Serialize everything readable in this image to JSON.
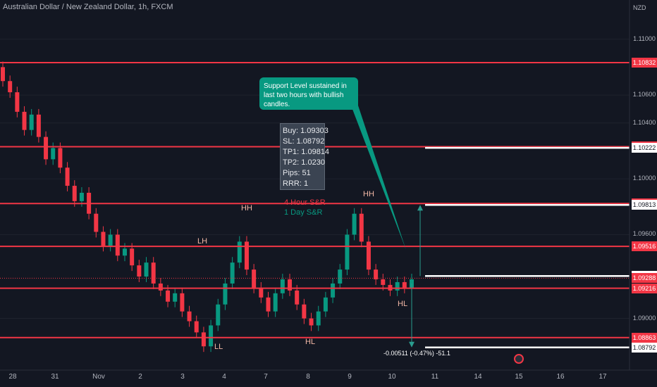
{
  "header": {
    "title": "Australian Dollar / New Zealand Dollar, 1h, FXCM",
    "currency": "NZD"
  },
  "info_box": [
    "Buy: 1.09303",
    "SL: 1.08792",
    "TP1: 1.09814",
    "TP2: 1.0230",
    "Pips: 51",
    "RRR: 1"
  ],
  "callout": "Support Level sustained in last two hours with bullish candles.",
  "legend": {
    "four_hour": "4 Hour S&R",
    "one_day": "1 Day S&R",
    "four_hour_color": "#f23645",
    "one_day_color": "#089981"
  },
  "measure": "-0.00511 (-0.47%) -51.1",
  "chart_data": {
    "type": "candlestick",
    "x_ticks": [
      "28",
      "31",
      "Nov",
      "2",
      "3",
      "4",
      "7",
      "8",
      "9",
      "10",
      "11",
      "14",
      "15",
      "16",
      "17"
    ],
    "y_ticks": [
      "1.11000",
      "1.10600",
      "1.10400",
      "1.10000",
      "1.09600",
      "1.09000"
    ],
    "ylim": [
      1.0866,
      1.1118
    ],
    "price_labels": [
      {
        "value": "1.10832",
        "color": "#f23645"
      },
      {
        "value": "1.10230",
        "color": "#f23645"
      },
      {
        "value": "1.10222",
        "color": "#ffffff"
      },
      {
        "value": "1.09823",
        "color": "#f23645"
      },
      {
        "value": "1.09813",
        "color": "#ffffff"
      },
      {
        "value": "1.09516",
        "color": "#f23645"
      },
      {
        "value": "1.09304",
        "color": "#ffffff"
      },
      {
        "value": "1.09288",
        "color": "#f23645"
      },
      {
        "value": "1.09216",
        "color": "#f23645"
      },
      {
        "value": "1.08863",
        "color": "#f23645"
      },
      {
        "value": "1.08792",
        "color": "#ffffff"
      }
    ],
    "support_resistance_4h": [
      1.10832,
      1.1023,
      1.09823,
      1.09516,
      1.09216,
      1.08863
    ],
    "support_resistance_1d": [
      1.10222,
      1.09813,
      1.09304,
      1.08792
    ],
    "last_price": 1.09288,
    "swing_labels": [
      {
        "text": "HH",
        "x": "Nov 3",
        "y": 1.0972
      },
      {
        "text": "LH",
        "x": "Nov 2",
        "y": 1.0945
      },
      {
        "text": "LL",
        "x": "Nov 3",
        "y": 1.0877
      },
      {
        "text": "HL",
        "x": "Nov 7",
        "y": 1.0879
      },
      {
        "text": "HH",
        "x": "Nov 9",
        "y": 1.0975
      },
      {
        "text": "HL",
        "x": "Nov 10",
        "y": 1.0905
      }
    ],
    "closes": [
      1.107,
      1.1062,
      1.1048,
      1.1035,
      1.1046,
      1.103,
      1.1014,
      1.1022,
      1.1008,
      1.0995,
      1.0984,
      1.099,
      1.0975,
      1.0962,
      1.0952,
      1.096,
      1.0945,
      1.095,
      1.0938,
      1.093,
      1.094,
      1.0925,
      1.092,
      1.0912,
      1.0918,
      1.0905,
      1.0898,
      1.089,
      1.088,
      1.0895,
      1.091,
      1.0925,
      1.094,
      1.0955,
      1.0935,
      1.0922,
      1.0915,
      1.0905,
      1.0918,
      1.0928,
      1.092,
      1.091,
      1.09,
      1.0895,
      1.0905,
      1.0915,
      1.0925,
      1.0935,
      1.096,
      1.0975,
      1.0955,
      1.0935,
      1.0928,
      1.0924,
      1.092,
      1.0926,
      1.0922,
      1.0928
    ]
  }
}
